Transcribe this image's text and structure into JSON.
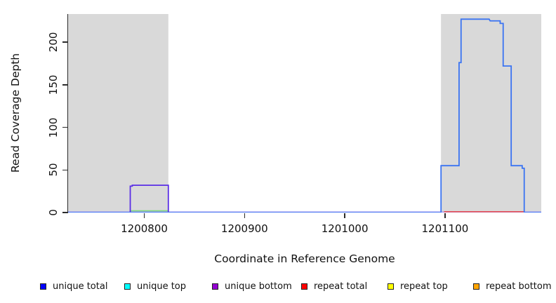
{
  "chart_data": {
    "type": "line",
    "subtype": "step-coverage",
    "title": "",
    "xlabel": "Coordinate in Reference Genome",
    "ylabel": "Read Coverage Depth",
    "xlim": [
      1200724,
      1201196
    ],
    "ylim": [
      0,
      233
    ],
    "x_ticks": [
      1200800,
      1200900,
      1201000,
      1201100
    ],
    "y_ticks": [
      0,
      50,
      100,
      150,
      200
    ],
    "grid": false,
    "background_color": "#ffffff",
    "shaded_regions": [
      {
        "name": "shaded-region-left",
        "x0": 1200724,
        "x1": 1200824,
        "color": "#d9d9d9"
      },
      {
        "name": "shaded-region-right",
        "x0": 1201096,
        "x1": 1201196,
        "color": "#d9d9d9"
      }
    ],
    "series": [
      {
        "name": "unique bottom baseline",
        "color": "#a89af2",
        "width": 3,
        "points": [
          [
            1200724,
            0
          ],
          [
            1201196,
            0
          ]
        ]
      },
      {
        "name": "green segment",
        "color": "#7ed87e",
        "width": 1.6,
        "points": [
          [
            1200786,
            2
          ],
          [
            1200824,
            2
          ]
        ]
      },
      {
        "name": "repeat total",
        "color": "#e85055",
        "width": 1.6,
        "points": [
          [
            1201099,
            1
          ],
          [
            1201179,
            1
          ]
        ]
      },
      {
        "name": "unique bottom",
        "color": "#5b2ee6",
        "width": 1.8,
        "points": [
          [
            1200786,
            0
          ],
          [
            1200786,
            31
          ],
          [
            1200788,
            31
          ],
          [
            1200788,
            32
          ],
          [
            1200824,
            32
          ],
          [
            1200824,
            0
          ]
        ]
      },
      {
        "name": "unique total",
        "color": "#3b74f2",
        "width": 1.8,
        "points": [
          [
            1200724,
            0
          ],
          [
            1201096,
            0
          ],
          [
            1201096,
            55
          ],
          [
            1201114,
            55
          ],
          [
            1201114,
            176
          ],
          [
            1201116,
            176
          ],
          [
            1201116,
            227
          ],
          [
            1201144,
            227
          ],
          [
            1201145,
            225
          ],
          [
            1201155,
            225
          ],
          [
            1201155,
            222
          ],
          [
            1201158,
            222
          ],
          [
            1201158,
            172
          ],
          [
            1201166,
            172
          ],
          [
            1201166,
            55
          ],
          [
            1201177,
            55
          ],
          [
            1201177,
            52
          ],
          [
            1201179,
            52
          ],
          [
            1201179,
            0
          ],
          [
            1201196,
            0
          ]
        ]
      }
    ],
    "legend_position": "bottom",
    "legend": [
      {
        "label": "unique total",
        "color": "#0000ff"
      },
      {
        "label": "unique top",
        "color": "#00ffff"
      },
      {
        "label": "unique bottom",
        "color": "#9400d3"
      },
      {
        "label": "repeat total",
        "color": "#ff0000"
      },
      {
        "label": "repeat top",
        "color": "#ffff00"
      },
      {
        "label": "repeat bottom",
        "color": "#ffa500"
      }
    ]
  },
  "layout_hints": {
    "legend_x_positions": [
      57,
      177,
      302,
      429,
      552,
      674
    ]
  }
}
